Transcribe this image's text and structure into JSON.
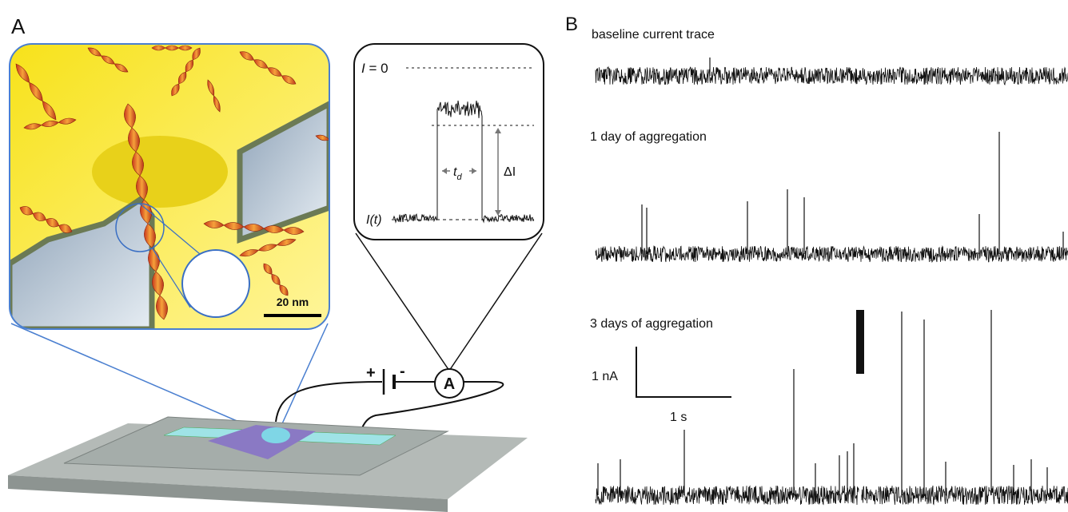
{
  "panel_a": {
    "label": "A",
    "scale_bar": "20 nm",
    "inset": {
      "zero_symbol": "I",
      "zero_rest": " = 0",
      "current_label": "I(t)",
      "dwell_symbol": "t",
      "dwell_subscript": "d",
      "delta_label": "ΔI"
    },
    "circuit": {
      "plus": "+",
      "minus": "-",
      "ammeter": "A"
    }
  },
  "panel_b": {
    "label": "B",
    "trace_titles": [
      "baseline current trace",
      "1 day of aggregation",
      "3 days of aggregation"
    ],
    "scale_current": "1 nA",
    "scale_time": "1 s"
  }
}
